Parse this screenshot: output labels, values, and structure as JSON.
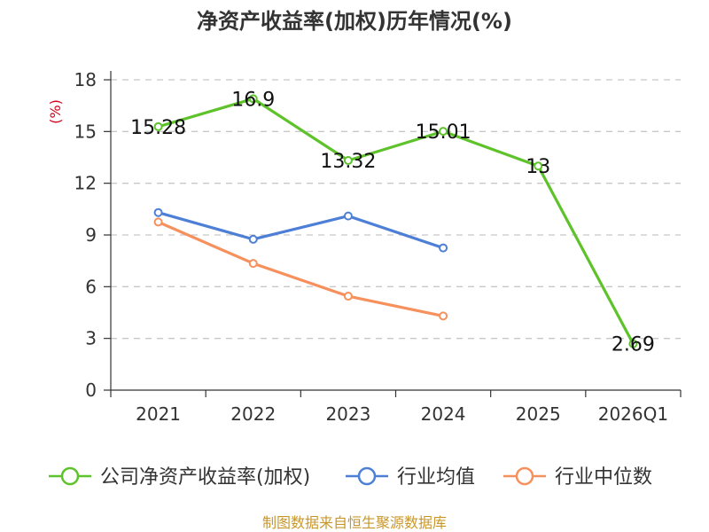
{
  "chart_data": {
    "type": "line",
    "title": "净资产收益率(加权)历年情况(%)",
    "ylabel": "(%)",
    "ylim": [
      0,
      18
    ],
    "yticks": [
      0,
      3,
      6,
      9,
      12,
      15,
      18
    ],
    "grid": true,
    "categories": [
      "2021",
      "2022",
      "2023",
      "2024",
      "2025",
      "2026Q1"
    ],
    "series": [
      {
        "name": "公司净资产收益率(加权)",
        "color": "#5ec22a",
        "values": [
          15.28,
          16.9,
          13.32,
          15.01,
          13,
          2.69
        ],
        "labels": [
          "15.28",
          "16.9",
          "13.32",
          "15.01",
          "13",
          "2.69"
        ]
      },
      {
        "name": "行业均值",
        "color": "#4d7fd6",
        "values": [
          10.3,
          8.75,
          10.1,
          8.25,
          null,
          null
        ]
      },
      {
        "name": "行业中位数",
        "color": "#f6905d",
        "values": [
          9.75,
          7.35,
          5.45,
          4.3,
          null,
          null
        ]
      }
    ],
    "legend_position": "bottom",
    "source": "制图数据来自恒生聚源数据库",
    "ylabel_color": "#d0021b",
    "source_color": "#c8972c"
  }
}
